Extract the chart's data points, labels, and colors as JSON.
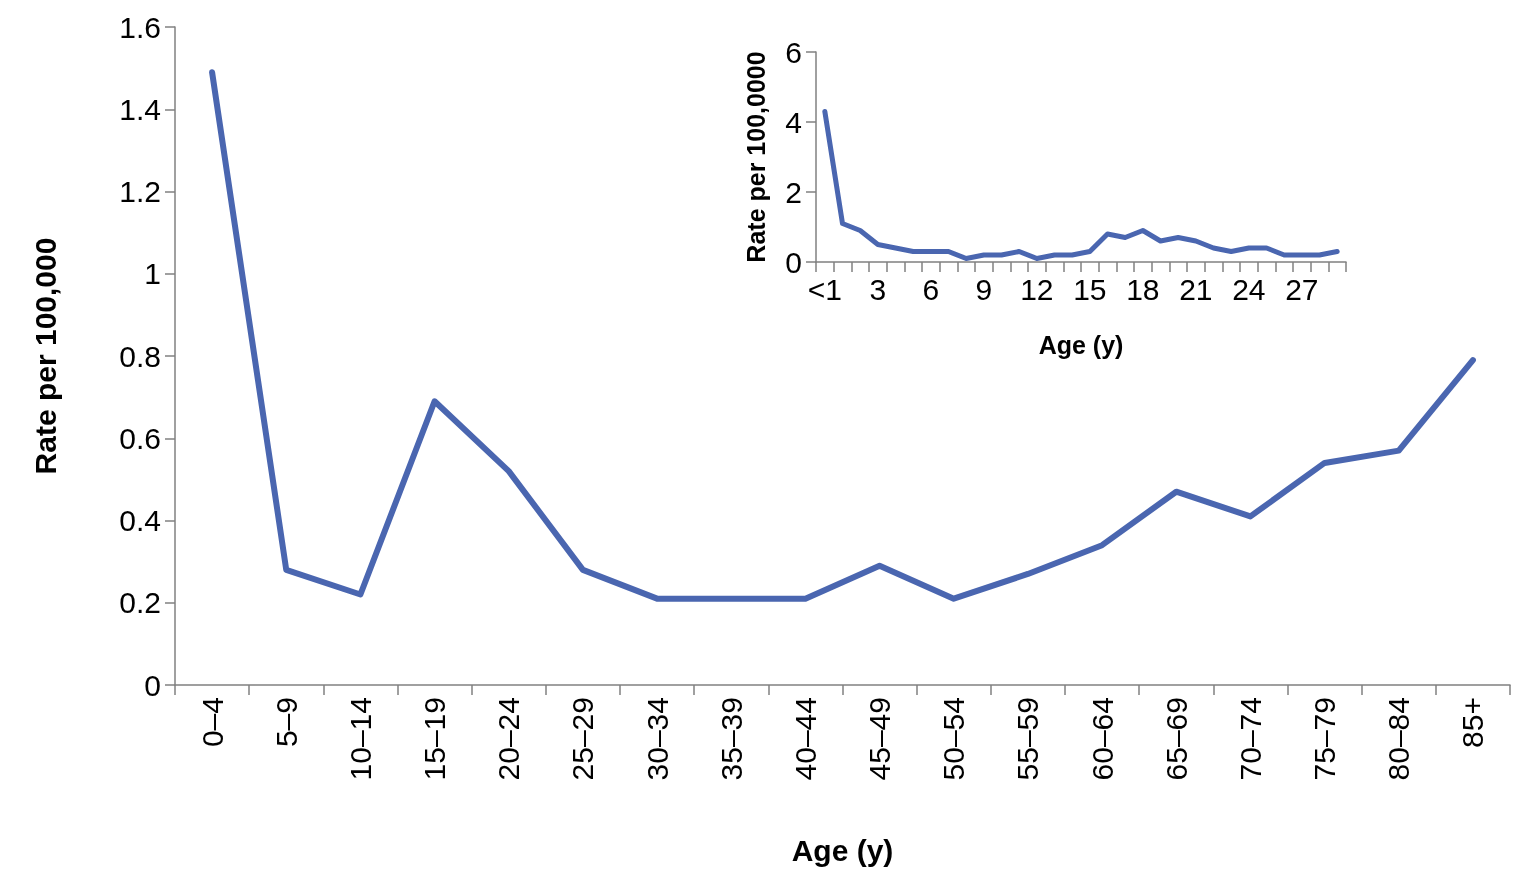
{
  "chart_data": [
    {
      "type": "line",
      "xlabel": "Age (y)",
      "ylabel": "Rate per 100,000",
      "categories": [
        "0–4",
        "5–9",
        "10–14",
        "15–19",
        "20–24",
        "25–29",
        "30–34",
        "35–39",
        "40–44",
        "45–49",
        "50–54",
        "55–59",
        "60–64",
        "65–69",
        "70–74",
        "75–79",
        "80–84",
        "85+"
      ],
      "series": [
        {
          "color": "#4a66b0",
          "values": [
            1.49,
            0.28,
            0.22,
            0.69,
            0.52,
            0.28,
            0.21,
            0.21,
            0.21,
            0.29,
            0.21,
            0.27,
            0.34,
            0.47,
            0.41,
            0.54,
            0.57,
            0.79
          ]
        }
      ],
      "ylim": [
        0,
        1.6
      ],
      "yticks": [
        0,
        0.2,
        0.4,
        0.6,
        0.8,
        1,
        1.2,
        1.4,
        1.6
      ],
      "grid": false,
      "marker": "none"
    },
    {
      "type": "line",
      "xlabel": "Age (y)",
      "ylabel": "Rate per 100,0000",
      "categories": [
        "<1",
        null,
        null,
        "3",
        null,
        null,
        "6",
        null,
        null,
        "9",
        null,
        null,
        "12",
        null,
        null,
        "15",
        null,
        null,
        "18",
        null,
        null,
        "21",
        null,
        null,
        "24",
        null,
        null,
        "27",
        null,
        null
      ],
      "series": [
        {
          "color": "#4a66b0",
          "values": [
            4.3,
            1.1,
            0.9,
            0.5,
            0.4,
            0.3,
            0.3,
            0.3,
            0.1,
            0.2,
            0.2,
            0.3,
            0.1,
            0.2,
            0.2,
            0.3,
            0.8,
            0.7,
            0.9,
            0.6,
            0.7,
            0.6,
            0.4,
            0.3,
            0.4,
            0.4,
            0.2,
            0.2,
            0.2,
            0.3
          ]
        }
      ],
      "ylim": [
        0,
        6
      ],
      "yticks": [
        0,
        2,
        4,
        6
      ],
      "grid": false,
      "marker": "none"
    }
  ]
}
